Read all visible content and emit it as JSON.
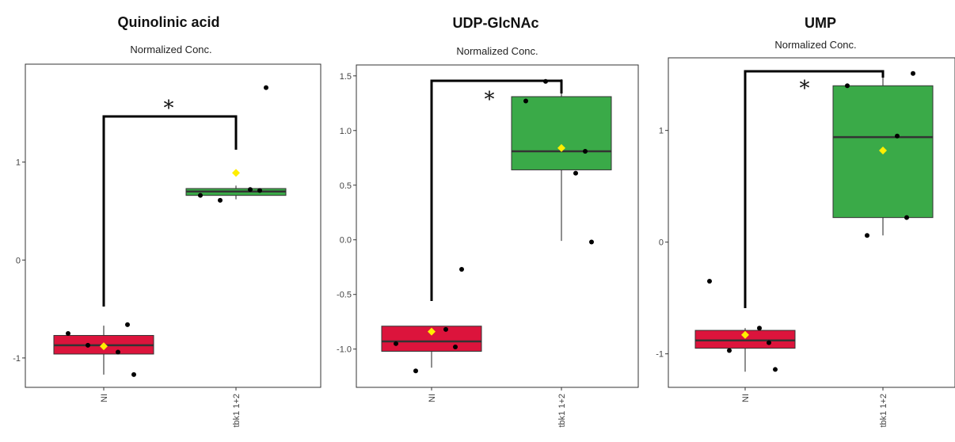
{
  "figure_style": {
    "group_colors": [
      "#dc143c",
      "#3aaa48"
    ],
    "box_edge_color": "#333333",
    "mean_marker_color": "#ffee00",
    "point_color": "#000000",
    "bracket_color": "#000000"
  },
  "chart_data": [
    {
      "type": "box",
      "title": "Quinolinic acid",
      "subtitle": "Normalized Conc.",
      "categories": [
        "NI",
        "tbk1 1+2"
      ],
      "ylim": [
        -1.3,
        2.0
      ],
      "yticks": [
        -1,
        0,
        1
      ],
      "ytick_labels": [
        "-1",
        "0",
        "1"
      ],
      "grid": false,
      "significance": "*",
      "boxes": [
        {
          "category": "NI",
          "q1": -0.96,
          "median": -0.87,
          "q3": -0.77,
          "whisker_low": -1.17,
          "whisker_high": -0.67,
          "mean": -0.88
        },
        {
          "category": "tbk1 1+2",
          "q1": 0.66,
          "median": 0.7,
          "q3": 0.73,
          "whisker_low": 0.62,
          "whisker_high": 0.76,
          "mean": 0.89
        }
      ],
      "points": [
        {
          "category": "NI",
          "values": [
            -0.75,
            -0.94,
            -0.66,
            -0.87,
            -1.17
          ]
        },
        {
          "category": "tbk1 1+2",
          "values": [
            0.66,
            0.72,
            0.71,
            0.61,
            1.76
          ]
        }
      ]
    },
    {
      "type": "box",
      "title": "UDP-GlcNAc",
      "subtitle": "Normalized Conc.",
      "categories": [
        "NI",
        "tbk1 1+2"
      ],
      "ylim": [
        -1.35,
        1.6
      ],
      "yticks": [
        -1.0,
        -0.5,
        0.0,
        0.5,
        1.0,
        1.5
      ],
      "ytick_labels": [
        "-1.0",
        "-0.5",
        "0.0",
        "0.5",
        "1.0",
        "1.5"
      ],
      "grid": false,
      "significance": "*",
      "boxes": [
        {
          "category": "NI",
          "q1": -1.02,
          "median": -0.93,
          "q3": -0.79,
          "whisker_low": -1.17,
          "whisker_high": -0.79,
          "mean": -0.84
        },
        {
          "category": "tbk1 1+2",
          "q1": 0.64,
          "median": 0.81,
          "q3": 1.31,
          "whisker_low": -0.01,
          "whisker_high": 1.47,
          "mean": 0.84
        }
      ],
      "points": [
        {
          "category": "NI",
          "values": [
            -0.95,
            -0.82,
            -0.98,
            -1.2,
            -0.27
          ]
        },
        {
          "category": "tbk1 1+2",
          "values": [
            1.27,
            0.61,
            0.81,
            1.45,
            -0.02
          ]
        }
      ]
    },
    {
      "type": "box",
      "title": "UMP",
      "subtitle": "Normalized Conc.",
      "categories": [
        "NI",
        "tbk1 1+2"
      ],
      "ylim": [
        -1.3,
        1.65
      ],
      "yticks": [
        -1,
        0,
        1
      ],
      "ytick_labels": [
        "-1",
        "0",
        "1"
      ],
      "grid": false,
      "significance": "*",
      "boxes": [
        {
          "category": "NI",
          "q1": -0.95,
          "median": -0.88,
          "q3": -0.79,
          "whisker_low": -1.16,
          "whisker_high": -0.77,
          "mean": -0.83
        },
        {
          "category": "tbk1 1+2",
          "q1": 0.22,
          "median": 0.94,
          "q3": 1.4,
          "whisker_low": 0.06,
          "whisker_high": 1.49,
          "mean": 0.82
        }
      ],
      "points": [
        {
          "category": "NI",
          "values": [
            -0.35,
            -0.77,
            -0.9,
            -0.97,
            -1.14
          ]
        },
        {
          "category": "tbk1 1+2",
          "values": [
            1.4,
            0.95,
            0.22,
            0.06,
            1.51
          ]
        }
      ]
    }
  ]
}
